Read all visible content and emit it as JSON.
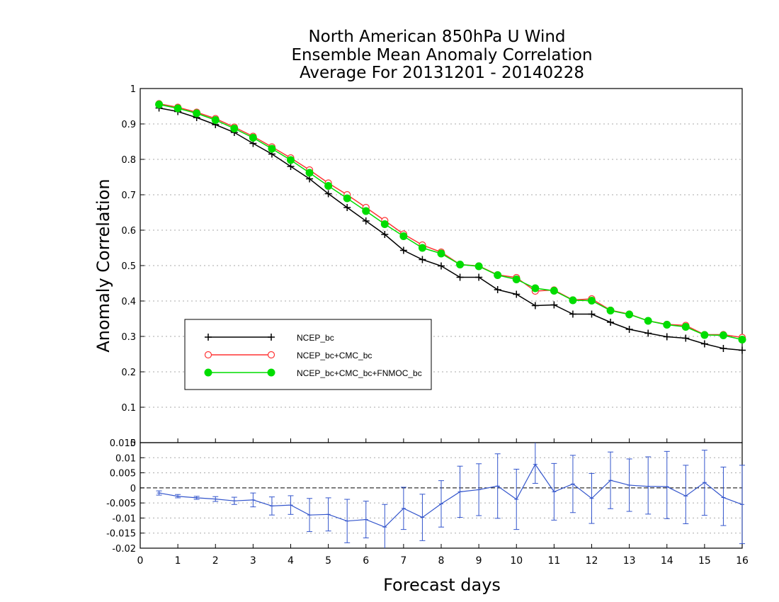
{
  "chart_data": [
    {
      "type": "line",
      "title": [
        "North American 850hPa U Wind",
        "Ensemble Mean Anomaly Correlation",
        "Average For 20131201 - 20140228"
      ],
      "xlabel": "Forecast days",
      "ylabel": "Anomaly Correlation",
      "xlim": [
        0,
        16
      ],
      "ylim": [
        0,
        1
      ],
      "x_ticks": [
        "0",
        "1",
        "2",
        "3",
        "4",
        "5",
        "6",
        "7",
        "8",
        "9",
        "10",
        "11",
        "12",
        "13",
        "14",
        "15",
        "16"
      ],
      "y_ticks": [
        "0",
        "0.1",
        "0.2",
        "0.3",
        "0.4",
        "0.5",
        "0.6",
        "0.7",
        "0.8",
        "0.9",
        "1"
      ],
      "grid": true,
      "legend_position": "lower-left",
      "x": [
        0.5,
        1,
        1.5,
        2,
        2.5,
        3,
        3.5,
        4,
        4.5,
        5,
        5.5,
        6,
        6.5,
        7,
        7.5,
        8,
        8.5,
        9,
        9.5,
        10,
        10.5,
        11,
        11.5,
        12,
        12.5,
        13,
        13.5,
        14,
        14.5,
        15,
        15.5,
        16
      ],
      "series": [
        {
          "name": "NCEP_bc",
          "color": "#000000",
          "marker": "plus",
          "values": [
            0.945,
            0.935,
            0.918,
            0.898,
            0.876,
            0.845,
            0.815,
            0.78,
            0.745,
            0.703,
            0.664,
            0.626,
            0.588,
            0.543,
            0.517,
            0.499,
            0.467,
            0.467,
            0.432,
            0.419,
            0.387,
            0.389,
            0.363,
            0.363,
            0.34,
            0.32,
            0.309,
            0.299,
            0.295,
            0.279,
            0.266,
            0.261
          ]
        },
        {
          "name": "NCEP_bc+CMC_bc",
          "color": "#ff3333",
          "marker": "open-circle",
          "values": [
            0.957,
            0.947,
            0.933,
            0.915,
            0.891,
            0.865,
            0.835,
            0.804,
            0.77,
            0.733,
            0.7,
            0.664,
            0.627,
            0.589,
            0.558,
            0.538,
            0.503,
            0.499,
            0.474,
            0.466,
            0.428,
            0.431,
            0.403,
            0.406,
            0.374,
            0.363,
            0.344,
            0.334,
            0.331,
            0.305,
            0.305,
            0.297
          ]
        },
        {
          "name": "NCEP_bc+CMC_bc+FNMOC_bc",
          "color": "#00dd00",
          "marker": "filled-circle",
          "values": [
            0.955,
            0.944,
            0.93,
            0.911,
            0.887,
            0.861,
            0.83,
            0.798,
            0.762,
            0.725,
            0.69,
            0.654,
            0.617,
            0.583,
            0.55,
            0.534,
            0.503,
            0.498,
            0.473,
            0.461,
            0.436,
            0.429,
            0.402,
            0.401,
            0.373,
            0.362,
            0.344,
            0.333,
            0.327,
            0.304,
            0.303,
            0.291
          ]
        }
      ]
    },
    {
      "type": "line",
      "xlabel": "Forecast days",
      "xlim": [
        0,
        16
      ],
      "ylim": [
        -0.02,
        0.015
      ],
      "y_ticks": [
        "-0.02",
        "-0.015",
        "-0.01",
        "-0.005",
        "0",
        "0.005",
        "0.01",
        "0.015"
      ],
      "grid": true,
      "zero_line": true,
      "x": [
        0.5,
        1,
        1.5,
        2,
        2.5,
        3,
        3.5,
        4,
        4.5,
        5,
        5.5,
        6,
        6.5,
        7,
        7.5,
        8,
        8.5,
        9,
        9.5,
        10,
        10.5,
        11,
        11.5,
        12,
        12.5,
        13,
        13.5,
        14,
        14.5,
        15,
        15.5,
        16
      ],
      "series": [
        {
          "color": "#3355cc",
          "error_bars": true,
          "values": [
            -0.0017,
            -0.0028,
            -0.0033,
            -0.0037,
            -0.0043,
            -0.004,
            -0.006,
            -0.0057,
            -0.009,
            -0.0088,
            -0.011,
            -0.0105,
            -0.013,
            -0.0068,
            -0.0098,
            -0.0053,
            -0.0013,
            -0.0006,
            0.0006,
            -0.0038,
            0.0078,
            -0.0013,
            0.0013,
            -0.0035,
            0.0025,
            0.0009,
            0.0005,
            0.0004,
            -0.0027,
            0.0018,
            -0.0032,
            -0.0055
          ],
          "error_low": [
            -0.0024,
            -0.0033,
            -0.0038,
            -0.0045,
            -0.0055,
            -0.0063,
            -0.009,
            -0.0088,
            -0.0145,
            -0.0143,
            -0.0182,
            -0.0166,
            -0.0205,
            -0.0138,
            -0.0175,
            -0.013,
            -0.0098,
            -0.0092,
            -0.0101,
            -0.0138,
            0.0015,
            -0.0107,
            -0.0082,
            -0.0118,
            -0.0069,
            -0.0078,
            -0.0087,
            -0.0102,
            -0.0119,
            -0.0091,
            -0.0125,
            -0.0185
          ],
          "error_high": [
            -0.001,
            -0.0022,
            -0.0028,
            -0.0029,
            -0.0031,
            -0.0017,
            -0.003,
            -0.0026,
            -0.0035,
            -0.0033,
            -0.0038,
            -0.0044,
            -0.0055,
            0.0002,
            -0.0021,
            0.0024,
            0.0072,
            0.008,
            0.0113,
            0.0062,
            0.0154,
            0.0081,
            0.0108,
            0.0048,
            0.0119,
            0.0096,
            0.0103,
            0.0121,
            0.0075,
            0.0125,
            0.0069,
            0.0075
          ]
        }
      ]
    }
  ]
}
